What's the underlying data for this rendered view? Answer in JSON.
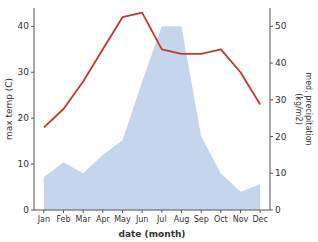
{
  "chart_data": {
    "type": "line",
    "categories": [
      "Jan",
      "Feb",
      "Mar",
      "Apr",
      "May",
      "Jun",
      "Jul",
      "Aug",
      "Sep",
      "Oct",
      "Nov",
      "Dec"
    ],
    "series": [
      {
        "type": "area",
        "axis": "y2",
        "color": "#c5d5ee",
        "values": [
          9,
          13,
          10,
          15,
          19,
          35,
          50,
          50,
          20,
          10,
          5,
          7
        ]
      },
      {
        "type": "line",
        "color": "#c0392b",
        "values": [
          18,
          22,
          28,
          35,
          42,
          43,
          35,
          34,
          34,
          35,
          30,
          23
        ]
      }
    ],
    "x_label": "date (month)",
    "y_label": "max temp (C)",
    "y2_label": "med. precipitation\n(kg/m2)",
    "ylim": [
      0,
      44
    ],
    "yticks": [
      0,
      10,
      20,
      30,
      40
    ],
    "y2lim": [
      0,
      55
    ],
    "y2ticks": [
      0,
      10,
      20,
      30,
      40,
      50
    ],
    "grid": false
  }
}
